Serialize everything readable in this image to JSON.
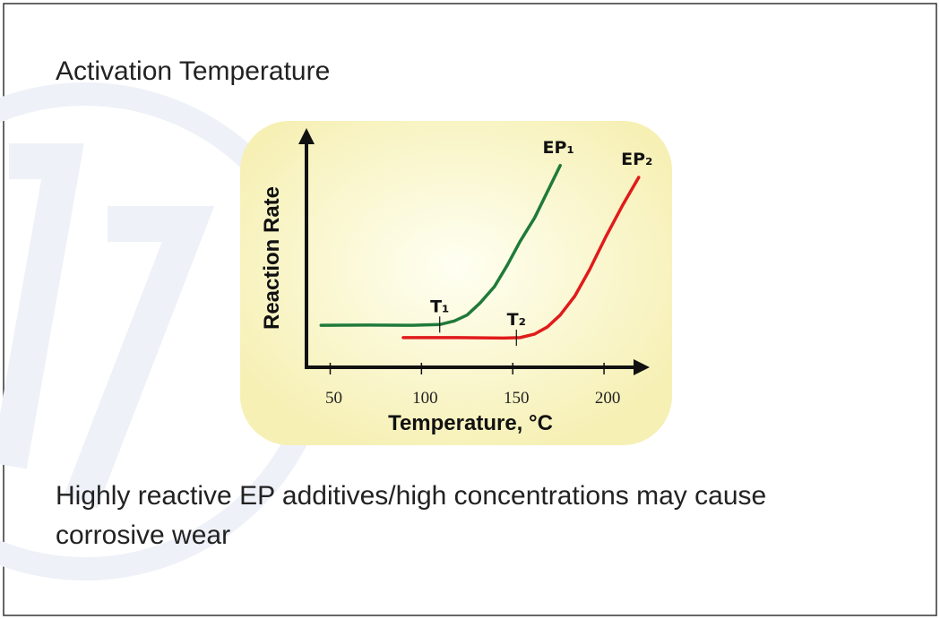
{
  "heading": "Activation Temperature",
  "chart_data": {
    "type": "line",
    "xlabel": "Temperature, °C",
    "ylabel": "Reaction Rate",
    "xlim": [
      37,
      225
    ],
    "xticks": [
      50,
      100,
      150,
      200
    ],
    "ylim": [
      0,
      100
    ],
    "series": [
      {
        "name": "EP₁",
        "color": "#1f7a3a",
        "x": [
          45,
          70,
          95,
          110,
          118,
          125,
          132,
          140,
          147,
          154,
          162,
          169,
          176
        ],
        "values": [
          17.7,
          17.8,
          17.7,
          18,
          19.5,
          22,
          27,
          34,
          43,
          53,
          63,
          74,
          85
        ]
      },
      {
        "name": "EP₂",
        "color": "#e01b1b",
        "x": [
          90,
          120,
          145,
          154,
          162,
          169,
          176,
          184,
          192,
          201,
          210,
          219
        ],
        "values": [
          12.5,
          12.5,
          12.3,
          12.5,
          14,
          17,
          22,
          30,
          41,
          55,
          68,
          80
        ]
      }
    ],
    "annotations": [
      {
        "text": "T₁",
        "x": 110
      },
      {
        "text": "T₂",
        "x": 152
      }
    ]
  },
  "body": "Highly reactive EP additives/high concentrations may cause corrosive wear"
}
